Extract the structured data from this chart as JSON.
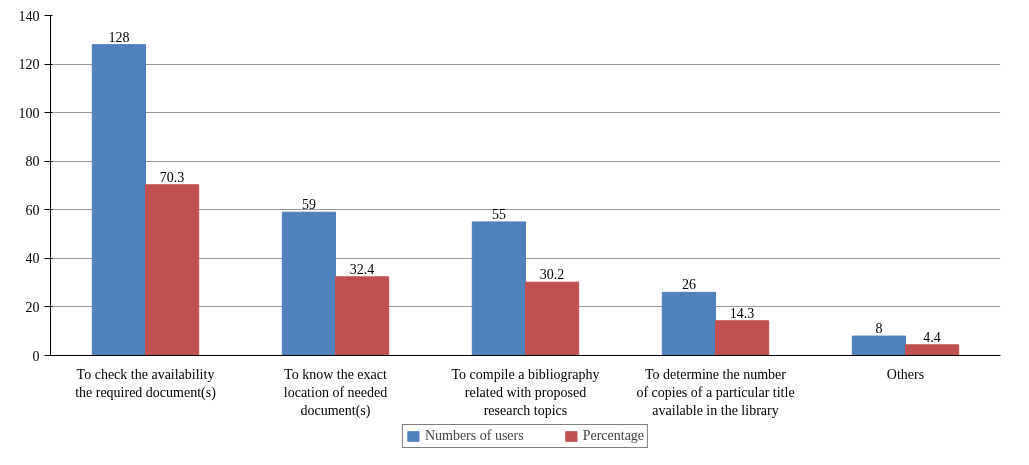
{
  "chart_data": {
    "type": "bar",
    "categories": [
      "To check the availability\nthe required document(s)",
      "To know the exact\nlocation of needed\ndocument(s)",
      "To compile a bibliography\nrelated with proposed\nresearch topics",
      "To determine the number\nof copies of a particular title\navailable in the library",
      "Others"
    ],
    "series": [
      {
        "name": "Numbers of users",
        "color": "#4f81bd",
        "values": [
          128,
          59,
          55,
          26,
          8
        ]
      },
      {
        "name": "Percentage",
        "color": "#c0504d",
        "values": [
          70.3,
          32.4,
          30.2,
          14.3,
          4.4
        ]
      }
    ],
    "ylim": [
      0,
      140
    ],
    "yticks": [
      0,
      20,
      40,
      60,
      80,
      100,
      120,
      140
    ],
    "grid": "y",
    "legend": "bottom",
    "data_labels": true
  }
}
